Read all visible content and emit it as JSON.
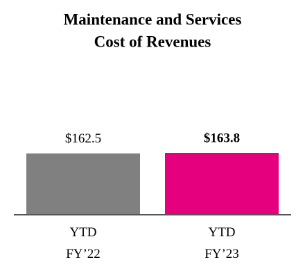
{
  "chart_data": {
    "type": "bar",
    "title": [
      "Maintenance and Services",
      "Cost of Revenues"
    ],
    "categories": [
      "YTD FY’22",
      "YTD FY’23"
    ],
    "values": [
      162.5,
      163.8
    ],
    "value_labels": [
      "$162.5",
      "$163.8"
    ],
    "colors": [
      "#808080",
      "#e5007e"
    ],
    "bold_labels": [
      false,
      true
    ]
  }
}
